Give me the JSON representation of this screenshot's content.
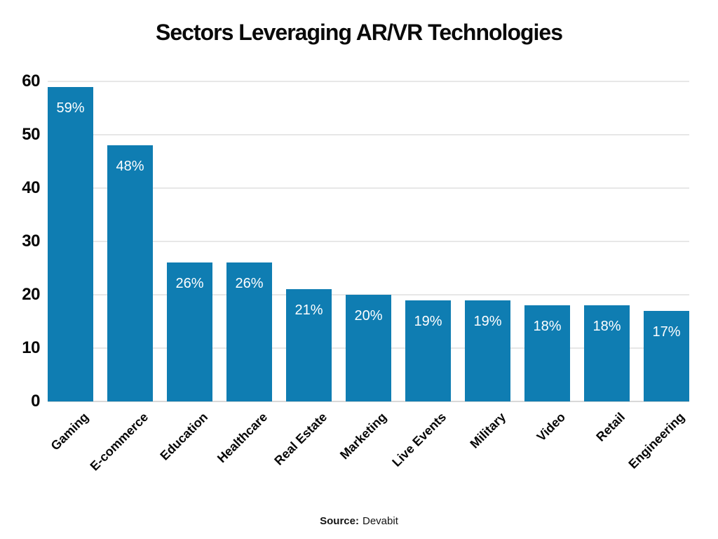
{
  "title": "Sectors Leveraging AR/VR Technologies",
  "source": {
    "label": "Source:",
    "value": "Devabit"
  },
  "colors": {
    "bar": "#0F7DB2",
    "grid": "#E7E7E7",
    "baseline": "#D8D8D8",
    "title_text": "#0A0A0A",
    "axis_text": "#060606",
    "bar_label_text": "#FFFFFF"
  },
  "chart_data": {
    "type": "bar",
    "title": "Sectors Leveraging AR/VR Technologies",
    "categories": [
      "Gaming",
      "E-commerce",
      "Education",
      "Healthcare",
      "Real Estate",
      "Marketing",
      "Live Events",
      "Military",
      "Video",
      "Retail",
      "Engineering"
    ],
    "values": [
      59,
      48,
      26,
      26,
      21,
      20,
      19,
      19,
      18,
      18,
      17
    ],
    "bar_labels": [
      "59%",
      "48%",
      "26%",
      "26%",
      "21%",
      "20%",
      "19%",
      "19%",
      "18%",
      "18%",
      "17%"
    ],
    "xlabel": "",
    "ylabel": "",
    "ylim": [
      0,
      60
    ],
    "yticks": [
      0,
      10,
      20,
      30,
      40,
      50,
      60
    ],
    "grid": true,
    "legend": "none",
    "x_tick_rotation_deg": 45
  }
}
